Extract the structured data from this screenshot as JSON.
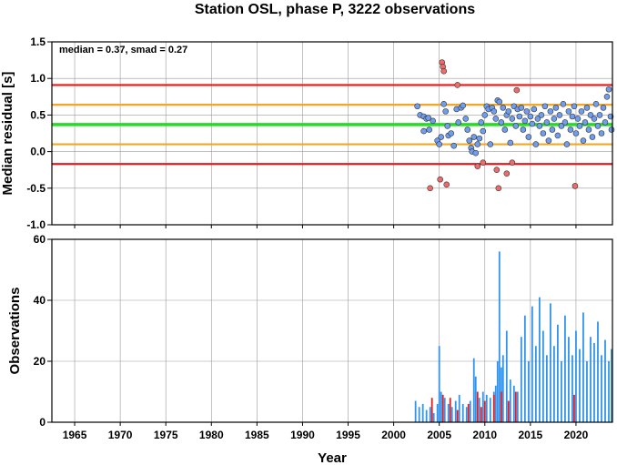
{
  "chart_data": [
    {
      "type": "scatter",
      "title": "Station OSL, phase P, 3222 observations",
      "annotation": "median = 0.37, smad = 0.27",
      "ylabel": "Median residual [s]",
      "xlim": [
        1962.5,
        2024
      ],
      "ylim": [
        -1.0,
        1.5
      ],
      "yticks": [
        "1.5",
        "1.0",
        "0.5",
        "0.0",
        "-0.5",
        "-1.0"
      ],
      "ytick_values": [
        1.5,
        1.0,
        0.5,
        0.0,
        -0.5,
        -1.0
      ],
      "grid": true,
      "reference_lines": [
        {
          "y": 0.91,
          "color": "#e41a1c"
        },
        {
          "y": 0.64,
          "color": "#f5a623"
        },
        {
          "y": 0.37,
          "color": "#22dd22"
        },
        {
          "y": 0.1,
          "color": "#f5a623"
        },
        {
          "y": -0.17,
          "color": "#e41a1c"
        }
      ],
      "series": [
        {
          "color": "#6f9ef0",
          "points": [
            [
              2002.6,
              0.62
            ],
            [
              2002.9,
              0.5
            ],
            [
              2003.3,
              0.48
            ],
            [
              2003.6,
              0.45
            ],
            [
              2003.8,
              0.46
            ],
            [
              2003.3,
              0.28
            ],
            [
              2003.9,
              0.3
            ],
            [
              2004.3,
              0.42
            ],
            [
              2004.8,
              0.15
            ],
            [
              2005.0,
              0.1
            ],
            [
              2005.2,
              0.2
            ],
            [
              2005.5,
              0.65
            ],
            [
              2005.7,
              0.55
            ],
            [
              2005.9,
              0.35
            ],
            [
              2006.0,
              0.22
            ],
            [
              2006.3,
              0.25
            ],
            [
              2006.6,
              0.08
            ],
            [
              2006.9,
              0.58
            ],
            [
              2007.1,
              0.4
            ],
            [
              2007.4,
              0.6
            ],
            [
              2007.6,
              0.63
            ],
            [
              2007.9,
              0.45
            ],
            [
              2008.1,
              0.3
            ],
            [
              2008.3,
              0.15
            ],
            [
              2008.5,
              0.05
            ],
            [
              2008.6,
              0.0
            ],
            [
              2008.8,
              0.2
            ],
            [
              2009.0,
              -0.02
            ],
            [
              2009.2,
              0.1
            ],
            [
              2009.4,
              0.18
            ],
            [
              2009.6,
              0.4
            ],
            [
              2009.8,
              0.28
            ],
            [
              2010.0,
              0.5
            ],
            [
              2010.2,
              0.62
            ],
            [
              2010.4,
              0.58
            ],
            [
              2010.6,
              0.1
            ],
            [
              2010.8,
              0.6
            ],
            [
              2011.0,
              0.55
            ],
            [
              2011.2,
              0.45
            ],
            [
              2011.4,
              0.7
            ],
            [
              2011.6,
              0.68
            ],
            [
              2011.8,
              0.4
            ],
            [
              2012.0,
              0.6
            ],
            [
              2012.2,
              0.3
            ],
            [
              2012.4,
              0.5
            ],
            [
              2012.6,
              0.55
            ],
            [
              2012.8,
              0.12
            ],
            [
              2013.0,
              0.45
            ],
            [
              2013.2,
              0.62
            ],
            [
              2013.4,
              0.35
            ],
            [
              2013.6,
              0.58
            ],
            [
              2013.8,
              0.48
            ],
            [
              2014.0,
              0.6
            ],
            [
              2014.2,
              0.3
            ],
            [
              2014.4,
              0.42
            ],
            [
              2014.6,
              0.55
            ],
            [
              2014.8,
              0.2
            ],
            [
              2015.0,
              0.48
            ],
            [
              2015.2,
              0.38
            ],
            [
              2015.4,
              0.58
            ],
            [
              2015.6,
              0.1
            ],
            [
              2015.8,
              0.45
            ],
            [
              2016.0,
              0.35
            ],
            [
              2016.2,
              0.5
            ],
            [
              2016.4,
              0.25
            ],
            [
              2016.6,
              0.62
            ],
            [
              2016.8,
              0.4
            ],
            [
              2017.0,
              0.15
            ],
            [
              2017.2,
              0.55
            ],
            [
              2017.4,
              0.3
            ],
            [
              2017.6,
              0.45
            ],
            [
              2017.8,
              0.6
            ],
            [
              2018.0,
              0.22
            ],
            [
              2018.2,
              0.5
            ],
            [
              2018.4,
              0.35
            ],
            [
              2018.6,
              0.65
            ],
            [
              2018.8,
              0.4
            ],
            [
              2019.0,
              0.1
            ],
            [
              2019.2,
              0.55
            ],
            [
              2019.4,
              0.3
            ],
            [
              2019.6,
              0.48
            ],
            [
              2019.8,
              0.62
            ],
            [
              2020.0,
              0.25
            ],
            [
              2020.2,
              0.45
            ],
            [
              2020.4,
              0.35
            ],
            [
              2020.6,
              0.55
            ],
            [
              2020.8,
              0.15
            ],
            [
              2021.0,
              0.4
            ],
            [
              2021.2,
              0.6
            ],
            [
              2021.4,
              0.3
            ],
            [
              2021.6,
              0.5
            ],
            [
              2021.8,
              0.2
            ],
            [
              2022.0,
              0.45
            ],
            [
              2022.2,
              0.65
            ],
            [
              2022.4,
              0.35
            ],
            [
              2022.6,
              0.5
            ],
            [
              2022.8,
              0.25
            ],
            [
              2023.0,
              0.6
            ],
            [
              2023.2,
              0.4
            ],
            [
              2023.4,
              0.75
            ],
            [
              2023.6,
              0.85
            ],
            [
              2023.8,
              0.48
            ],
            [
              2023.9,
              0.3
            ]
          ]
        },
        {
          "color": "#f06a6a",
          "points": [
            [
              2005.3,
              1.22
            ],
            [
              2005.4,
              1.16
            ],
            [
              2005.5,
              1.1
            ],
            [
              2007.0,
              0.91
            ],
            [
              2013.5,
              0.84
            ],
            [
              2004.0,
              -0.5
            ],
            [
              2005.1,
              -0.38
            ],
            [
              2005.8,
              -0.45
            ],
            [
              2009.2,
              -0.2
            ],
            [
              2009.8,
              -0.15
            ],
            [
              2011.3,
              -0.25
            ],
            [
              2011.5,
              -0.5
            ],
            [
              2012.4,
              -0.3
            ],
            [
              2013.0,
              -0.15
            ],
            [
              2019.9,
              -0.47
            ]
          ]
        }
      ]
    },
    {
      "type": "bar",
      "xlabel": "Year",
      "ylabel": "Observations",
      "xlim": [
        1962.5,
        2024
      ],
      "ylim": [
        0,
        60
      ],
      "xticks": [
        "1965",
        "1970",
        "1975",
        "1980",
        "1985",
        "1990",
        "1995",
        "2000",
        "2005",
        "2010",
        "2015",
        "2020"
      ],
      "xtick_values": [
        1965,
        1970,
        1975,
        1980,
        1985,
        1990,
        1995,
        2000,
        2005,
        2010,
        2015,
        2020
      ],
      "yticks": [
        "60",
        "40",
        "20",
        "0"
      ],
      "ytick_values": [
        60,
        40,
        20,
        0
      ],
      "grid": true,
      "series": [
        {
          "color": "#2f94f0",
          "bars": [
            [
              2002.4,
              7
            ],
            [
              2002.8,
              5
            ],
            [
              2003.2,
              6
            ],
            [
              2003.6,
              4
            ],
            [
              2004.0,
              5
            ],
            [
              2004.4,
              3
            ],
            [
              2004.8,
              6
            ],
            [
              2005.0,
              25
            ],
            [
              2005.2,
              10
            ],
            [
              2005.6,
              8
            ],
            [
              2006.0,
              6
            ],
            [
              2006.4,
              5
            ],
            [
              2006.8,
              7
            ],
            [
              2007.2,
              9
            ],
            [
              2007.6,
              6
            ],
            [
              2008.0,
              5
            ],
            [
              2008.4,
              7
            ],
            [
              2008.8,
              21
            ],
            [
              2009.0,
              15
            ],
            [
              2009.4,
              8
            ],
            [
              2009.8,
              10
            ],
            [
              2010.2,
              9
            ],
            [
              2010.6,
              8
            ],
            [
              2011.0,
              10
            ],
            [
              2011.2,
              12
            ],
            [
              2011.4,
              20
            ],
            [
              2011.6,
              56
            ],
            [
              2011.8,
              18
            ],
            [
              2012.0,
              22
            ],
            [
              2012.4,
              30
            ],
            [
              2012.8,
              14
            ],
            [
              2013.2,
              12
            ],
            [
              2013.6,
              10
            ],
            [
              2014.0,
              28
            ],
            [
              2014.4,
              35
            ],
            [
              2014.8,
              20
            ],
            [
              2015.2,
              38
            ],
            [
              2015.6,
              25
            ],
            [
              2016.0,
              41
            ],
            [
              2016.4,
              30
            ],
            [
              2016.8,
              22
            ],
            [
              2017.2,
              39
            ],
            [
              2017.6,
              25
            ],
            [
              2018.0,
              32
            ],
            [
              2018.4,
              20
            ],
            [
              2018.8,
              35
            ],
            [
              2019.2,
              28
            ],
            [
              2019.6,
              22
            ],
            [
              2020.0,
              30
            ],
            [
              2020.4,
              24
            ],
            [
              2020.8,
              36
            ],
            [
              2021.2,
              20
            ],
            [
              2021.6,
              28
            ],
            [
              2022.0,
              26
            ],
            [
              2022.4,
              33
            ],
            [
              2022.8,
              22
            ],
            [
              2023.2,
              27
            ],
            [
              2023.6,
              20
            ],
            [
              2023.9,
              24
            ]
          ]
        },
        {
          "color": "#e41a1c",
          "bars": [
            [
              2004.2,
              8
            ],
            [
              2005.4,
              9
            ],
            [
              2006.2,
              8
            ],
            [
              2007.0,
              4
            ],
            [
              2008.2,
              6
            ],
            [
              2009.2,
              10
            ],
            [
              2009.6,
              5
            ],
            [
              2010.0,
              7
            ],
            [
              2011.0,
              9
            ],
            [
              2011.8,
              10
            ],
            [
              2012.6,
              7
            ],
            [
              2013.4,
              10
            ],
            [
              2019.8,
              9
            ]
          ]
        }
      ]
    }
  ]
}
